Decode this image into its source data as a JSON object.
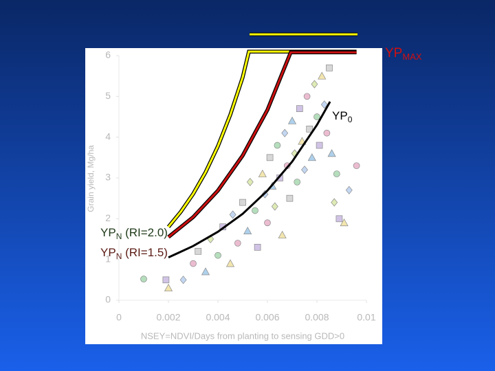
{
  "chart_data": {
    "type": "scatter",
    "x_label": "NSEY=NDVI/Days from planting to sensing GDD>0",
    "y_label": "Grain yield, Mg/ha",
    "xlim": [
      0,
      0.01
    ],
    "ylim": [
      0,
      6
    ],
    "xticks": [
      0,
      0.002,
      0.004,
      0.006,
      0.008,
      0.01
    ],
    "yticks": [
      0,
      1,
      2,
      3,
      4,
      5,
      6
    ],
    "point_colors": [
      "#a8d8b0",
      "#c8b8e0",
      "#f0e0a0",
      "#b8d0f0",
      "#e8b0c8",
      "#d0d0d0",
      "#a0c8e8",
      "#d8e8a8"
    ],
    "points": {
      "x": [
        0.001,
        0.0019,
        0.002,
        0.0026,
        0.003,
        0.0032,
        0.0035,
        0.0037,
        0.004,
        0.0042,
        0.0045,
        0.0046,
        0.0048,
        0.005,
        0.0052,
        0.0053,
        0.0055,
        0.0056,
        0.0058,
        0.0059,
        0.006,
        0.0061,
        0.0062,
        0.0063,
        0.0064,
        0.0065,
        0.0066,
        0.0067,
        0.0068,
        0.0069,
        0.007,
        0.0071,
        0.0072,
        0.0073,
        0.0074,
        0.0075,
        0.0076,
        0.0077,
        0.0078,
        0.0079,
        0.008,
        0.0081,
        0.0082,
        0.0083,
        0.0084,
        0.0085,
        0.0086,
        0.0087,
        0.0088,
        0.0089,
        0.0091,
        0.0093,
        0.0096
      ],
      "values": [
        0.52,
        0.5,
        0.3,
        0.5,
        0.9,
        1.2,
        0.7,
        1.5,
        1.1,
        1.8,
        0.9,
        2.1,
        1.4,
        2.4,
        1.7,
        2.9,
        2.2,
        1.3,
        3.1,
        2.6,
        1.9,
        3.5,
        2.8,
        2.3,
        3.8,
        3.0,
        1.6,
        4.1,
        3.3,
        2.5,
        4.4,
        3.6,
        2.9,
        4.7,
        3.9,
        3.2,
        5.0,
        4.2,
        3.5,
        5.3,
        4.5,
        3.8,
        5.5,
        4.8,
        4.1,
        5.7,
        3.6,
        2.4,
        3.1,
        2.0,
        1.9,
        2.7,
        3.3
      ]
    },
    "curves": [
      {
        "color": "#ffff00",
        "x": [
          0.002,
          0.0025,
          0.003,
          0.0035,
          0.004,
          0.0045,
          0.005,
          0.00525,
          0.0096
        ],
        "values": [
          1.8,
          2.17,
          2.61,
          3.14,
          3.78,
          4.55,
          5.47,
          6.1,
          6.1
        ]
      },
      {
        "color": "#cc1010",
        "x": [
          0.002,
          0.003,
          0.004,
          0.005,
          0.006,
          0.00694,
          0.0096
        ],
        "values": [
          1.55,
          2.04,
          2.69,
          3.55,
          4.67,
          6.08,
          6.08
        ]
      },
      {
        "color": "#000000",
        "x": [
          0.002,
          0.003,
          0.004,
          0.005,
          0.006,
          0.007,
          0.008,
          0.00853
        ],
        "values": [
          1.05,
          1.33,
          1.68,
          2.12,
          2.69,
          3.4,
          4.3,
          4.87
        ]
      }
    ],
    "annotations": {
      "yp_max": {
        "text": "YP",
        "sub": "MAX"
      },
      "yp_0": {
        "text": "YP",
        "sub": "0"
      },
      "yp_n_20": {
        "text": "YP",
        "sub": "N",
        "rest": " (RI=2.0)"
      },
      "yp_n_15": {
        "text": "YP",
        "sub": "N",
        "rest": " (RI=1.5)"
      }
    }
  }
}
